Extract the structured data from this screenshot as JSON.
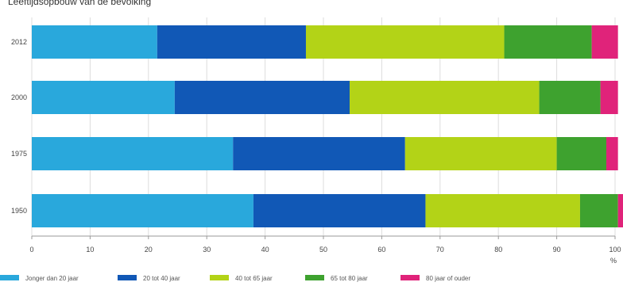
{
  "chart_data": {
    "type": "bar",
    "orientation": "horizontal",
    "stacked": true,
    "title": "Leeftijdsopbouw van de bevolking",
    "categories": [
      "2012",
      "2000",
      "1975",
      "1950"
    ],
    "series": [
      {
        "name": "Jonger dan 20 jaar",
        "color": "#29a8dc",
        "values": [
          21.5,
          24.5,
          34.5,
          38.0
        ]
      },
      {
        "name": "20 tot 40 jaar",
        "color": "#1158b6",
        "values": [
          25.5,
          30.0,
          29.5,
          29.5
        ]
      },
      {
        "name": "40 tot 65 jaar",
        "color": "#b3d317",
        "values": [
          34.0,
          32.5,
          26.0,
          26.5
        ]
      },
      {
        "name": "65 tot 80 jaar",
        "color": "#3ea22f",
        "values": [
          15.0,
          10.5,
          8.5,
          6.5
        ]
      },
      {
        "name": "80 jaar of ouder",
        "color": "#e0237a",
        "values": [
          4.5,
          3.0,
          2.0,
          1.0
        ]
      }
    ],
    "xlim": [
      0,
      100
    ],
    "xticks": [
      "0",
      "10",
      "20",
      "30",
      "40",
      "50",
      "60",
      "70",
      "80",
      "90",
      "100"
    ],
    "xunit": "%",
    "grid": "vertical",
    "legend_position": "bottom"
  }
}
